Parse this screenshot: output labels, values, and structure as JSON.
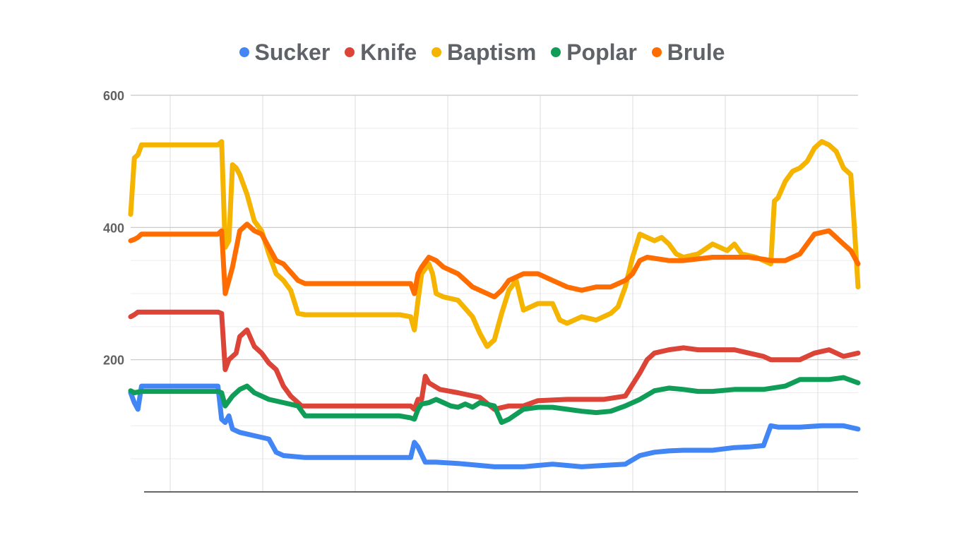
{
  "chart_data": {
    "type": "line",
    "title": "",
    "xlabel": "",
    "ylabel": "",
    "ylim": [
      0,
      600
    ],
    "y_ticks": [
      "600",
      "400",
      "200"
    ],
    "y_tick_values": [
      600,
      400,
      200
    ],
    "x_range": [
      0,
      1000
    ],
    "grid": true,
    "legend_position": "top",
    "series": [
      {
        "name": "Sucker",
        "color": "#4285f4",
        "points": [
          [
            0,
            150
          ],
          [
            5,
            135
          ],
          [
            10,
            125
          ],
          [
            15,
            160
          ],
          [
            50,
            160
          ],
          [
            100,
            160
          ],
          [
            120,
            160
          ],
          [
            125,
            110
          ],
          [
            130,
            105
          ],
          [
            135,
            115
          ],
          [
            140,
            95
          ],
          [
            150,
            90
          ],
          [
            170,
            85
          ],
          [
            190,
            80
          ],
          [
            200,
            60
          ],
          [
            210,
            55
          ],
          [
            240,
            52
          ],
          [
            300,
            52
          ],
          [
            370,
            52
          ],
          [
            385,
            52
          ],
          [
            390,
            75
          ],
          [
            395,
            68
          ],
          [
            405,
            45
          ],
          [
            420,
            45
          ],
          [
            450,
            43
          ],
          [
            480,
            40
          ],
          [
            500,
            38
          ],
          [
            540,
            38
          ],
          [
            560,
            40
          ],
          [
            580,
            42
          ],
          [
            600,
            40
          ],
          [
            620,
            38
          ],
          [
            650,
            40
          ],
          [
            680,
            42
          ],
          [
            700,
            55
          ],
          [
            720,
            60
          ],
          [
            740,
            62
          ],
          [
            760,
            63
          ],
          [
            800,
            63
          ],
          [
            830,
            67
          ],
          [
            850,
            68
          ],
          [
            870,
            70
          ],
          [
            880,
            100
          ],
          [
            890,
            98
          ],
          [
            920,
            98
          ],
          [
            950,
            100
          ],
          [
            980,
            100
          ],
          [
            1000,
            95
          ]
        ]
      },
      {
        "name": "Knife",
        "color": "#db4437",
        "points": [
          [
            0,
            265
          ],
          [
            5,
            268
          ],
          [
            10,
            272
          ],
          [
            50,
            272
          ],
          [
            120,
            272
          ],
          [
            125,
            270
          ],
          [
            130,
            185
          ],
          [
            135,
            200
          ],
          [
            145,
            210
          ],
          [
            150,
            235
          ],
          [
            160,
            245
          ],
          [
            170,
            220
          ],
          [
            180,
            210
          ],
          [
            190,
            195
          ],
          [
            200,
            185
          ],
          [
            210,
            160
          ],
          [
            220,
            145
          ],
          [
            235,
            130
          ],
          [
            300,
            130
          ],
          [
            370,
            130
          ],
          [
            385,
            130
          ],
          [
            390,
            125
          ],
          [
            395,
            140
          ],
          [
            400,
            140
          ],
          [
            405,
            175
          ],
          [
            410,
            165
          ],
          [
            425,
            155
          ],
          [
            450,
            150
          ],
          [
            480,
            143
          ],
          [
            500,
            125
          ],
          [
            520,
            130
          ],
          [
            540,
            130
          ],
          [
            560,
            138
          ],
          [
            600,
            140
          ],
          [
            650,
            140
          ],
          [
            680,
            145
          ],
          [
            700,
            180
          ],
          [
            710,
            200
          ],
          [
            720,
            210
          ],
          [
            740,
            215
          ],
          [
            760,
            218
          ],
          [
            780,
            215
          ],
          [
            800,
            215
          ],
          [
            830,
            215
          ],
          [
            850,
            210
          ],
          [
            870,
            205
          ],
          [
            880,
            200
          ],
          [
            900,
            200
          ],
          [
            920,
            200
          ],
          [
            940,
            210
          ],
          [
            960,
            215
          ],
          [
            980,
            205
          ],
          [
            1000,
            210
          ]
        ]
      },
      {
        "name": "Baptism",
        "color": "#f4b400",
        "points": [
          [
            0,
            420
          ],
          [
            5,
            505
          ],
          [
            10,
            510
          ],
          [
            15,
            525
          ],
          [
            50,
            525
          ],
          [
            100,
            525
          ],
          [
            120,
            525
          ],
          [
            125,
            530
          ],
          [
            130,
            370
          ],
          [
            135,
            380
          ],
          [
            140,
            495
          ],
          [
            145,
            490
          ],
          [
            150,
            480
          ],
          [
            160,
            450
          ],
          [
            170,
            410
          ],
          [
            180,
            395
          ],
          [
            190,
            360
          ],
          [
            200,
            330
          ],
          [
            210,
            320
          ],
          [
            220,
            305
          ],
          [
            230,
            270
          ],
          [
            240,
            268
          ],
          [
            300,
            268
          ],
          [
            370,
            268
          ],
          [
            385,
            265
          ],
          [
            390,
            245
          ],
          [
            395,
            290
          ],
          [
            400,
            330
          ],
          [
            410,
            345
          ],
          [
            415,
            330
          ],
          [
            420,
            300
          ],
          [
            430,
            295
          ],
          [
            450,
            290
          ],
          [
            470,
            265
          ],
          [
            480,
            240
          ],
          [
            490,
            220
          ],
          [
            500,
            230
          ],
          [
            510,
            270
          ],
          [
            520,
            305
          ],
          [
            530,
            320
          ],
          [
            540,
            275
          ],
          [
            560,
            285
          ],
          [
            580,
            285
          ],
          [
            590,
            260
          ],
          [
            600,
            255
          ],
          [
            620,
            265
          ],
          [
            640,
            260
          ],
          [
            660,
            270
          ],
          [
            670,
            280
          ],
          [
            680,
            310
          ],
          [
            690,
            355
          ],
          [
            700,
            390
          ],
          [
            710,
            385
          ],
          [
            720,
            380
          ],
          [
            730,
            385
          ],
          [
            740,
            375
          ],
          [
            750,
            360
          ],
          [
            760,
            355
          ],
          [
            780,
            360
          ],
          [
            800,
            375
          ],
          [
            820,
            365
          ],
          [
            830,
            375
          ],
          [
            840,
            360
          ],
          [
            860,
            355
          ],
          [
            870,
            350
          ],
          [
            880,
            345
          ],
          [
            885,
            440
          ],
          [
            890,
            445
          ],
          [
            900,
            470
          ],
          [
            910,
            485
          ],
          [
            920,
            490
          ],
          [
            930,
            500
          ],
          [
            940,
            520
          ],
          [
            950,
            530
          ],
          [
            960,
            525
          ],
          [
            970,
            515
          ],
          [
            980,
            490
          ],
          [
            990,
            480
          ],
          [
            995,
            400
          ],
          [
            1000,
            310
          ]
        ]
      },
      {
        "name": "Poplar",
        "color": "#0f9d58",
        "points": [
          [
            0,
            153
          ],
          [
            5,
            150
          ],
          [
            15,
            152
          ],
          [
            50,
            152
          ],
          [
            100,
            152
          ],
          [
            120,
            152
          ],
          [
            125,
            150
          ],
          [
            130,
            130
          ],
          [
            140,
            145
          ],
          [
            150,
            155
          ],
          [
            160,
            160
          ],
          [
            170,
            150
          ],
          [
            180,
            145
          ],
          [
            190,
            140
          ],
          [
            210,
            135
          ],
          [
            230,
            130
          ],
          [
            240,
            115
          ],
          [
            300,
            115
          ],
          [
            370,
            115
          ],
          [
            385,
            112
          ],
          [
            390,
            110
          ],
          [
            395,
            125
          ],
          [
            400,
            133
          ],
          [
            410,
            135
          ],
          [
            420,
            140
          ],
          [
            430,
            135
          ],
          [
            440,
            130
          ],
          [
            450,
            128
          ],
          [
            460,
            133
          ],
          [
            470,
            128
          ],
          [
            480,
            135
          ],
          [
            500,
            130
          ],
          [
            510,
            105
          ],
          [
            520,
            110
          ],
          [
            540,
            125
          ],
          [
            560,
            128
          ],
          [
            580,
            128
          ],
          [
            600,
            125
          ],
          [
            620,
            122
          ],
          [
            640,
            120
          ],
          [
            660,
            122
          ],
          [
            680,
            130
          ],
          [
            700,
            140
          ],
          [
            720,
            153
          ],
          [
            740,
            157
          ],
          [
            760,
            155
          ],
          [
            780,
            152
          ],
          [
            800,
            152
          ],
          [
            830,
            155
          ],
          [
            850,
            155
          ],
          [
            870,
            155
          ],
          [
            900,
            160
          ],
          [
            920,
            170
          ],
          [
            940,
            170
          ],
          [
            960,
            170
          ],
          [
            980,
            173
          ],
          [
            1000,
            165
          ]
        ]
      },
      {
        "name": "Brule",
        "color": "#ff6d00",
        "points": [
          [
            0,
            380
          ],
          [
            5,
            382
          ],
          [
            10,
            385
          ],
          [
            15,
            390
          ],
          [
            50,
            390
          ],
          [
            100,
            390
          ],
          [
            120,
            390
          ],
          [
            125,
            395
          ],
          [
            130,
            300
          ],
          [
            135,
            320
          ],
          [
            140,
            340
          ],
          [
            150,
            395
          ],
          [
            160,
            405
          ],
          [
            170,
            395
          ],
          [
            180,
            390
          ],
          [
            190,
            370
          ],
          [
            200,
            350
          ],
          [
            210,
            345
          ],
          [
            230,
            320
          ],
          [
            240,
            315
          ],
          [
            300,
            315
          ],
          [
            370,
            315
          ],
          [
            385,
            315
          ],
          [
            390,
            300
          ],
          [
            395,
            330
          ],
          [
            400,
            340
          ],
          [
            410,
            355
          ],
          [
            420,
            350
          ],
          [
            430,
            340
          ],
          [
            450,
            330
          ],
          [
            470,
            310
          ],
          [
            480,
            305
          ],
          [
            490,
            300
          ],
          [
            500,
            295
          ],
          [
            510,
            305
          ],
          [
            520,
            320
          ],
          [
            530,
            325
          ],
          [
            540,
            330
          ],
          [
            560,
            330
          ],
          [
            580,
            320
          ],
          [
            600,
            310
          ],
          [
            620,
            305
          ],
          [
            640,
            310
          ],
          [
            660,
            310
          ],
          [
            680,
            320
          ],
          [
            690,
            330
          ],
          [
            700,
            350
          ],
          [
            710,
            355
          ],
          [
            740,
            350
          ],
          [
            760,
            350
          ],
          [
            800,
            355
          ],
          [
            830,
            355
          ],
          [
            850,
            355
          ],
          [
            870,
            352
          ],
          [
            880,
            350
          ],
          [
            900,
            350
          ],
          [
            920,
            360
          ],
          [
            940,
            390
          ],
          [
            960,
            395
          ],
          [
            980,
            375
          ],
          [
            990,
            365
          ],
          [
            1000,
            345
          ]
        ]
      }
    ]
  }
}
